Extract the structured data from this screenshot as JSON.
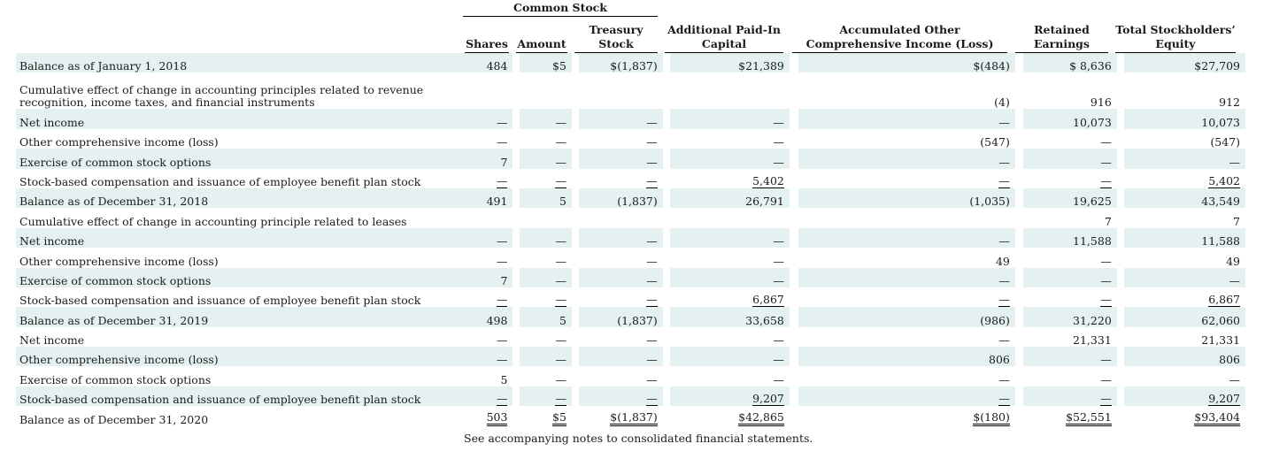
{
  "headers": {
    "group_common_stock": "Common Stock",
    "shares": "Shares",
    "amount": "Amount",
    "treasury": "Treasury Stock",
    "apic": "Additional Paid-In Capital",
    "aoci": "Accumulated Other Comprehensive Income (Loss)",
    "retained": "Retained Earnings",
    "total": "Total Stockholders’ Equity"
  },
  "rows": [
    {
      "label": "Balance as of January 1, 2018",
      "shares": "484",
      "amount": "$5",
      "treasury": "$(1,837)",
      "apic": "$21,389",
      "aoci": "$(484)",
      "retained": "$ 8,636",
      "total": "$27,709",
      "shade": true,
      "tall": false
    },
    {
      "label": "Cumulative effect of change in accounting principles related to revenue recognition, income taxes, and financial instruments",
      "shares": "",
      "amount": "",
      "treasury": "",
      "apic": "",
      "aoci": "(4)",
      "retained": "916",
      "total": "912",
      "shade": false,
      "tall": true
    },
    {
      "label": "Net income",
      "shares": "—",
      "amount": "—",
      "treasury": "—",
      "apic": "—",
      "aoci": "—",
      "retained": "10,073",
      "total": "10,073",
      "shade": true,
      "tall": false
    },
    {
      "label": "Other comprehensive income (loss)",
      "shares": "—",
      "amount": "—",
      "treasury": "—",
      "apic": "—",
      "aoci": "(547)",
      "retained": "—",
      "total": "(547)",
      "shade": false,
      "tall": false
    },
    {
      "label": "Exercise of common stock options",
      "shares": "7",
      "amount": "—",
      "treasury": "—",
      "apic": "—",
      "aoci": "—",
      "retained": "—",
      "total": "—",
      "shade": true,
      "tall": false
    },
    {
      "label": "Stock-based compensation and issuance of employee benefit plan stock",
      "shares": "—",
      "amount": "—",
      "treasury": "—",
      "apic": "5,402",
      "aoci": "—",
      "retained": "—",
      "total": "5,402",
      "shade": false,
      "tall": false,
      "underline": true
    },
    {
      "label": "Balance as of December 31, 2018",
      "shares": "491",
      "amount": "5",
      "treasury": "(1,837)",
      "apic": "26,791",
      "aoci": "(1,035)",
      "retained": "19,625",
      "total": "43,549",
      "shade": true,
      "tall": false
    },
    {
      "label": "Cumulative effect of change in accounting principle related to leases",
      "shares": "",
      "amount": "",
      "treasury": "",
      "apic": "",
      "aoci": "",
      "retained": "7",
      "total": "7",
      "shade": false,
      "tall": false
    },
    {
      "label": "Net income",
      "shares": "—",
      "amount": "—",
      "treasury": "—",
      "apic": "—",
      "aoci": "—",
      "retained": "11,588",
      "total": "11,588",
      "shade": true,
      "tall": false
    },
    {
      "label": "Other comprehensive income (loss)",
      "shares": "—",
      "amount": "—",
      "treasury": "—",
      "apic": "—",
      "aoci": "49",
      "retained": "—",
      "total": "49",
      "shade": false,
      "tall": false
    },
    {
      "label": "Exercise of common stock options",
      "shares": "7",
      "amount": "—",
      "treasury": "—",
      "apic": "—",
      "aoci": "—",
      "retained": "—",
      "total": "—",
      "shade": true,
      "tall": false
    },
    {
      "label": "Stock-based compensation and issuance of employee benefit plan stock",
      "shares": "—",
      "amount": "—",
      "treasury": "—",
      "apic": "6,867",
      "aoci": "—",
      "retained": "—",
      "total": "6,867",
      "shade": false,
      "tall": false,
      "underline": true
    },
    {
      "label": "Balance as of December 31, 2019",
      "shares": "498",
      "amount": "5",
      "treasury": "(1,837)",
      "apic": "33,658",
      "aoci": "(986)",
      "retained": "31,220",
      "total": "62,060",
      "shade": true,
      "tall": false
    },
    {
      "label": "Net income",
      "shares": "—",
      "amount": "—",
      "treasury": "—",
      "apic": "—",
      "aoci": "—",
      "retained": "21,331",
      "total": "21,331",
      "shade": false,
      "tall": false
    },
    {
      "label": "Other comprehensive income (loss)",
      "shares": "—",
      "amount": "—",
      "treasury": "—",
      "apic": "—",
      "aoci": "806",
      "retained": "—",
      "total": "806",
      "shade": true,
      "tall": false
    },
    {
      "label": "Exercise of common stock options",
      "shares": "5",
      "amount": "—",
      "treasury": "—",
      "apic": "—",
      "aoci": "—",
      "retained": "—",
      "total": "—",
      "shade": false,
      "tall": false
    },
    {
      "label": "Stock-based compensation and issuance of employee benefit plan stock",
      "shares": "—",
      "amount": "—",
      "treasury": "—",
      "apic": "9,207",
      "aoci": "—",
      "retained": "—",
      "total": "9,207",
      "shade": true,
      "tall": false,
      "underline": true
    },
    {
      "label": "Balance as of December 31, 2020",
      "shares": "503",
      "amount": "$5",
      "treasury": "$(1,837)",
      "apic": "$42,865",
      "aoci": "$(180)",
      "retained": "$52,551",
      "total": "$93,404",
      "shade": false,
      "tall": false,
      "double": true
    }
  ],
  "footnote": "See accompanying notes to consolidated financial statements."
}
